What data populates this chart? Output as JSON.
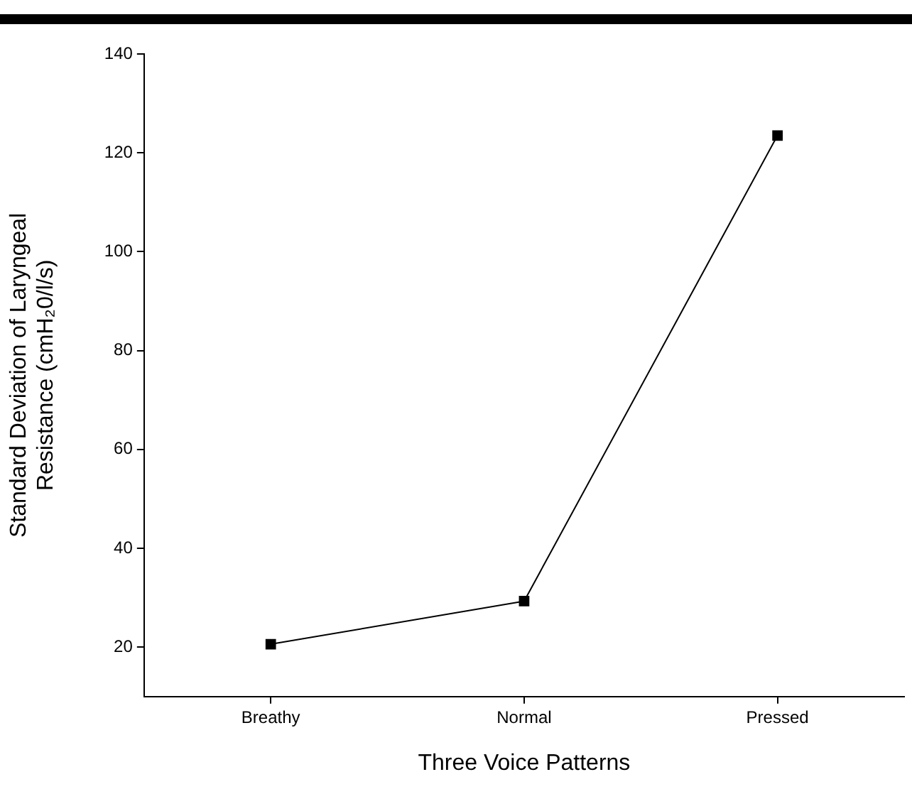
{
  "chart_data": {
    "type": "line",
    "xlabel": "Three Voice Patterns",
    "ylabel": "Standard Deviation of Laryngeal Resistance (cmH₂0/l/s)",
    "categories": [
      "Breathy",
      "Normal",
      "Pressed"
    ],
    "series": [
      {
        "color": "#000000",
        "values": [
          20.6,
          29.3,
          123.5
        ]
      }
    ],
    "ylim": [
      10,
      140
    ],
    "yticks": [
      20,
      40,
      60,
      80,
      100,
      120,
      140
    ],
    "grid": false,
    "legend": false,
    "marker": "square",
    "line_style": "solid"
  }
}
